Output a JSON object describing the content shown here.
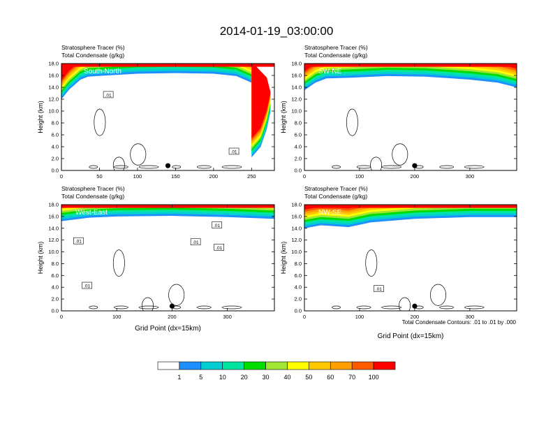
{
  "title": "2014-01-19_03:00:00",
  "colors": {
    "levels": [
      "#ffffff",
      "#1e90ff",
      "#00ced1",
      "#00e6a0",
      "#00dc00",
      "#a0e632",
      "#ffff00",
      "#ffc800",
      "#ffa000",
      "#ff5a00",
      "#ff0000"
    ]
  },
  "colorbar": {
    "labels": [
      "1",
      "5",
      "10",
      "20",
      "30",
      "40",
      "50",
      "60",
      "70",
      "100"
    ]
  },
  "footnote": "Total Condensate Contours: .01 to .01 by .000",
  "chart_data": [
    {
      "type": "heatmap",
      "panel_label": "South-North",
      "header_line1": "Stratosphere Tracer   (%)",
      "header_line2": "Total Condensate   (g/kg)",
      "ylabel": "Height (km)",
      "xlabel": "",
      "xlim": [
        0,
        280
      ],
      "ylim": [
        0,
        18
      ],
      "xticks": [
        0,
        50,
        100,
        150,
        200,
        250
      ],
      "yticks": [
        "0.0",
        "2.0",
        "4.0",
        "6.0",
        "8.0",
        "10.0",
        "12.0",
        "14.0",
        "16.0",
        "18.0"
      ],
      "contour_labels": [
        ".01",
        ".01"
      ],
      "marker_x": 140,
      "tropopause_km": [
        [
          0,
          12.0
        ],
        [
          10,
          13.6
        ],
        [
          25,
          15.3
        ],
        [
          35,
          15.8
        ],
        [
          60,
          16.0
        ],
        [
          100,
          16.3
        ],
        [
          150,
          16.4
        ],
        [
          200,
          16.3
        ],
        [
          230,
          15.9
        ],
        [
          255,
          14.5
        ],
        [
          270,
          12.5
        ],
        [
          275,
          10.0
        ],
        [
          270,
          7.0
        ],
        [
          262,
          4.0
        ],
        [
          250,
          2.2
        ]
      ]
    },
    {
      "type": "heatmap",
      "panel_label": "SW-NE",
      "header_line1": "Stratosphere Tracer   (%)",
      "header_line2": "Total Condensate   (g/kg)",
      "ylabel": "Height (km)",
      "xlabel": "",
      "xlim": [
        0,
        385
      ],
      "ylim": [
        0,
        18
      ],
      "xticks": [
        0,
        100,
        200,
        300
      ],
      "yticks": [
        "0.0",
        "2.0",
        "4.0",
        "6.0",
        "8.0",
        "10.0",
        "12.0",
        "14.0",
        "16.0",
        "18.0"
      ],
      "contour_labels": [],
      "marker_x": 200,
      "tropopause_km": [
        [
          0,
          13.5
        ],
        [
          20,
          14.8
        ],
        [
          40,
          15.5
        ],
        [
          80,
          15.6
        ],
        [
          150,
          15.9
        ],
        [
          220,
          15.8
        ],
        [
          300,
          15.3
        ],
        [
          350,
          14.8
        ],
        [
          385,
          14.0
        ]
      ]
    },
    {
      "type": "heatmap",
      "panel_label": "West-East",
      "header_line1": "Stratosphere Tracer   (%)",
      "header_line2": "Total Condensate   (g/kg)",
      "ylabel": "Height (km)",
      "xlabel": "Grid Point (dx=15km)",
      "xlim": [
        0,
        385
      ],
      "ylim": [
        0,
        18
      ],
      "xticks": [
        0,
        100,
        200,
        300
      ],
      "yticks": [
        "0.0",
        "2.0",
        "4.0",
        "6.0",
        "8.0",
        "10.0",
        "12.0",
        "14.0",
        "16.0",
        "18.0"
      ],
      "contour_labels": [
        ".01",
        ".01",
        ".01",
        ".01",
        ".01"
      ],
      "marker_x": 200,
      "tropopause_km": [
        [
          0,
          15.2
        ],
        [
          50,
          15.8
        ],
        [
          100,
          16.0
        ],
        [
          200,
          16.1
        ],
        [
          300,
          15.9
        ],
        [
          385,
          15.6
        ]
      ]
    },
    {
      "type": "heatmap",
      "panel_label": "NW-SE",
      "header_line1": "Stratosphere Tracer   (%)",
      "header_line2": "Total Condensate   (g/kg)",
      "ylabel": "Height (km)",
      "xlabel": "Grid Point (dx=15km)",
      "xlim": [
        0,
        385
      ],
      "ylim": [
        0,
        18
      ],
      "xticks": [
        0,
        100,
        200,
        300
      ],
      "yticks": [
        "0.0",
        "2.0",
        "4.0",
        "6.0",
        "8.0",
        "10.0",
        "12.0",
        "14.0",
        "16.0",
        "18.0"
      ],
      "contour_labels": [
        ".01"
      ],
      "marker_x": 200,
      "tropopause_km": [
        [
          0,
          14.0
        ],
        [
          30,
          14.5
        ],
        [
          80,
          14.2
        ],
        [
          120,
          15.0
        ],
        [
          200,
          15.6
        ],
        [
          300,
          15.9
        ],
        [
          385,
          15.9
        ]
      ]
    }
  ]
}
